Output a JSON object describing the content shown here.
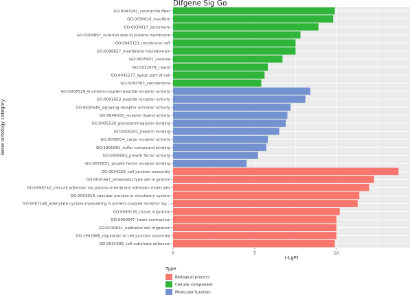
{
  "chart_data": {
    "type": "bar",
    "orientation": "horizontal",
    "title": "Difgene Sig Go",
    "xlabel": "(-LgP)",
    "ylabel": "Gene ontology category",
    "xlim": [
      0,
      14.5
    ],
    "xticks": [
      0,
      5,
      10
    ],
    "grid": true,
    "legend_placement": "bottom-left",
    "legend_title": "Type",
    "groups": [
      {
        "name": "Biological process",
        "color": "#F8766D"
      },
      {
        "name": "Cellular component",
        "color": "#2EB53A"
      },
      {
        "name": "Molecular function",
        "color": "#7392CF"
      }
    ],
    "bars": [
      {
        "category": "GO:0043292_contractile fiber",
        "value": 9.9,
        "group": "Cellular component"
      },
      {
        "category": "GO:0030016_myofibril",
        "value": 9.8,
        "group": "Cellular component"
      },
      {
        "category": "GO:0030017_sarcomere",
        "value": 8.9,
        "group": "Cellular component"
      },
      {
        "category": "GO:0009897_external side of plasma membrane",
        "value": 7.8,
        "group": "Cellular component"
      },
      {
        "category": "GO:0045121_membrane raft",
        "value": 7.5,
        "group": "Cellular component"
      },
      {
        "category": "GO:0098857_membrane microdomain",
        "value": 7.5,
        "group": "Cellular component"
      },
      {
        "category": "GO:0005901_caveola",
        "value": 6.7,
        "group": "Cellular component"
      },
      {
        "category": "GO:0031674_I band",
        "value": 5.8,
        "group": "Cellular component"
      },
      {
        "category": "GO:0045177_apical part of cell",
        "value": 5.6,
        "group": "Cellular component"
      },
      {
        "category": "GO:0042383_sarcolemma",
        "value": 5.4,
        "group": "Cellular component"
      },
      {
        "category": "GO:0008528_G protein-coupled peptide receptor activity",
        "value": 8.4,
        "group": "Molecular function"
      },
      {
        "category": "GO:0001653_peptide receptor activity",
        "value": 8.1,
        "group": "Molecular function"
      },
      {
        "category": "GO:0030546_signaling receptor activator activity",
        "value": 7.2,
        "group": "Molecular function"
      },
      {
        "category": "GO:0048018_receptor ligand activity",
        "value": 7.0,
        "group": "Molecular function"
      },
      {
        "category": "GO:0005539_glycosaminoglycan binding",
        "value": 6.9,
        "group": "Molecular function"
      },
      {
        "category": "GO:0008201_heparin binding",
        "value": 6.5,
        "group": "Molecular function"
      },
      {
        "category": "GO:0038024_cargo receptor activity",
        "value": 5.8,
        "group": "Molecular function"
      },
      {
        "category": "GO:1901681_sulfur compound binding",
        "value": 5.7,
        "group": "Molecular function"
      },
      {
        "category": "GO:0008083_growth factor activity",
        "value": 5.2,
        "group": "Molecular function"
      },
      {
        "category": "GO:0070851_growth factor receptor binding",
        "value": 4.5,
        "group": "Molecular function"
      },
      {
        "category": "GO:0034329_cell junction assembly",
        "value": 13.8,
        "group": "Biological process"
      },
      {
        "category": "GO:0001667_ameboidal-type cell migration",
        "value": 12.3,
        "group": "Biological process"
      },
      {
        "category": "GO:0098742_cell-cell adhesion via plasma-membrane adhesion molecules",
        "value": 12.0,
        "group": "Biological process"
      },
      {
        "category": "GO:0003018_vascular process in circulatory system",
        "value": 11.4,
        "group": "Biological process"
      },
      {
        "category": "GO:0007188_adenylate cyclase-modulating G protein-coupled receptor sig...",
        "value": 11.3,
        "group": "Biological process"
      },
      {
        "category": "GO:0090130_tissue migration",
        "value": 10.2,
        "group": "Biological process"
      },
      {
        "category": "GO:0060047_heart contraction",
        "value": 10.0,
        "group": "Biological process"
      },
      {
        "category": "GO:0010631_epithelial cell migration",
        "value": 10.0,
        "group": "Biological process"
      },
      {
        "category": "GO:1901888_regulation of cell junction assembly",
        "value": 10.0,
        "group": "Biological process"
      },
      {
        "category": "GO:0031589_cell-substrate adhesion",
        "value": 9.9,
        "group": "Biological process"
      }
    ]
  }
}
